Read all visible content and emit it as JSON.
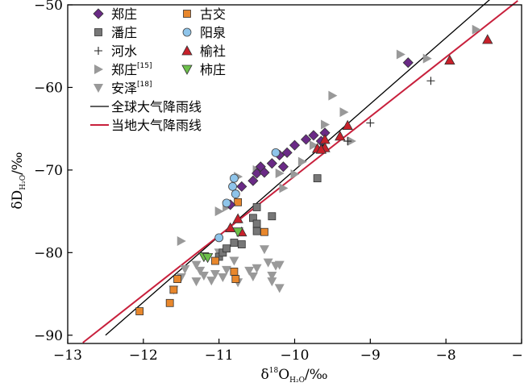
{
  "chart_data": {
    "type": "scatter",
    "title": "",
    "xlabel": {
      "main": "δ",
      "sup": "18",
      "mid": "O",
      "sub": "H₂O",
      "unit": "/‰"
    },
    "ylabel": {
      "main": "δD",
      "sub": "H₂O",
      "unit": "/‰"
    },
    "xlim": [
      -13,
      -7
    ],
    "ylim": [
      -91,
      -50
    ],
    "xticks": [
      -13,
      -12,
      -11,
      -10,
      -9,
      -8,
      -7
    ],
    "yticks": [
      -90,
      -80,
      -70,
      -60,
      -50
    ],
    "xtick_labels": [
      "−13",
      "−12",
      "−11",
      "−10",
      "−9",
      "−8",
      "−7"
    ],
    "ytick_labels": [
      "−90",
      "−80",
      "−70",
      "−60",
      "−50"
    ],
    "grid": false,
    "legend_position": "top-left",
    "series": [
      {
        "name": "郑庄",
        "sup": "",
        "marker": "diamond",
        "color": "#6a2a86",
        "points": [
          [
            -10.85,
            -74.2
          ],
          [
            -10.7,
            -72.0
          ],
          [
            -10.55,
            -71.3
          ],
          [
            -10.5,
            -70.4
          ],
          [
            -10.45,
            -69.6
          ],
          [
            -10.4,
            -70.3
          ],
          [
            -10.3,
            -69.2
          ],
          [
            -10.2,
            -68.2
          ],
          [
            -10.15,
            -69.6
          ],
          [
            -10.1,
            -67.9
          ],
          [
            -10.0,
            -67.0
          ],
          [
            -9.85,
            -66.3
          ],
          [
            -9.75,
            -65.8
          ],
          [
            -9.65,
            -66.5
          ],
          [
            -9.6,
            -65.5
          ],
          [
            -8.5,
            -57.0
          ]
        ]
      },
      {
        "name": "潘庄",
        "sup": "",
        "marker": "square",
        "color": "#777777",
        "points": [
          [
            -11.0,
            -80.5
          ],
          [
            -10.95,
            -80.0
          ],
          [
            -10.9,
            -79.5
          ],
          [
            -10.8,
            -78.8
          ],
          [
            -10.7,
            -79.0
          ],
          [
            -10.55,
            -75.8
          ],
          [
            -10.5,
            -74.5
          ],
          [
            -10.5,
            -76.5
          ],
          [
            -10.5,
            -77.4
          ],
          [
            -10.3,
            -75.6
          ],
          [
            -9.7,
            -71.0
          ]
        ]
      },
      {
        "name": "河水",
        "sup": "",
        "marker": "plus",
        "color": "#222222",
        "points": [
          [
            -9.3,
            -66.5
          ],
          [
            -9.0,
            -64.3
          ],
          [
            -8.2,
            -59.2
          ]
        ]
      },
      {
        "name": "郑庄",
        "sup": "[15]",
        "marker": "tri-right",
        "color": "#999999",
        "points": [
          [
            -11.5,
            -78.6
          ],
          [
            -11.0,
            -75.0
          ],
          [
            -10.9,
            -74.5
          ],
          [
            -10.75,
            -70.8
          ],
          [
            -10.5,
            -70.0
          ],
          [
            -10.2,
            -70.4
          ],
          [
            -10.15,
            -72.2
          ],
          [
            -10.0,
            -70.5
          ],
          [
            -9.9,
            -69.0
          ],
          [
            -9.75,
            -67.0
          ],
          [
            -9.6,
            -64.5
          ],
          [
            -9.5,
            -61.0
          ],
          [
            -9.35,
            -63.0
          ],
          [
            -9.25,
            -66.5
          ],
          [
            -8.6,
            -56.0
          ],
          [
            -8.25,
            -56.5
          ],
          [
            -7.6,
            -53.0
          ]
        ]
      },
      {
        "name": "安泽",
        "sup": "[18]",
        "marker": "tri-down",
        "color": "#999999",
        "points": [
          [
            -11.6,
            -84.5
          ],
          [
            -11.5,
            -83.0
          ],
          [
            -11.45,
            -82.0
          ],
          [
            -11.3,
            -83.5
          ],
          [
            -11.3,
            -81.5
          ],
          [
            -11.25,
            -82.2
          ],
          [
            -11.2,
            -82.8
          ],
          [
            -11.1,
            -83.4
          ],
          [
            -11.05,
            -82.6
          ],
          [
            -11.0,
            -80.0
          ],
          [
            -10.95,
            -83.0
          ],
          [
            -10.9,
            -82.1
          ],
          [
            -10.8,
            -81.0
          ],
          [
            -10.75,
            -83.6
          ],
          [
            -10.6,
            -82.2
          ],
          [
            -10.55,
            -82.9
          ],
          [
            -10.5,
            -81.9
          ],
          [
            -10.4,
            -79.6
          ],
          [
            -10.35,
            -81.2
          ],
          [
            -10.3,
            -82.8
          ],
          [
            -10.3,
            -83.5
          ],
          [
            -10.25,
            -81.6
          ],
          [
            -10.2,
            -84.3
          ],
          [
            -10.2,
            -81.5
          ]
        ]
      },
      {
        "name": "古交",
        "sup": "",
        "marker": "square",
        "color": "#e8872c",
        "points": [
          [
            -12.05,
            -87.1
          ],
          [
            -11.65,
            -86.1
          ],
          [
            -11.6,
            -84.5
          ],
          [
            -11.55,
            -83.2
          ],
          [
            -11.05,
            -81.0
          ],
          [
            -10.8,
            -82.3
          ],
          [
            -10.78,
            -83.2
          ],
          [
            -10.75,
            -73.9
          ],
          [
            -10.4,
            -77.5
          ]
        ]
      },
      {
        "name": "阳泉",
        "sup": "",
        "marker": "circle",
        "color": "#8ec4ea",
        "points": [
          [
            -11.0,
            -78.2
          ],
          [
            -10.8,
            -71.0
          ],
          [
            -10.82,
            -72.0
          ],
          [
            -10.78,
            -72.9
          ],
          [
            -10.9,
            -74.0
          ],
          [
            -10.25,
            -67.9
          ]
        ]
      },
      {
        "name": "榆社",
        "sup": "",
        "marker": "tri-up",
        "color": "#c8202a",
        "points": [
          [
            -10.85,
            -77.0
          ],
          [
            -10.75,
            -75.9
          ],
          [
            -10.7,
            -77.5
          ],
          [
            -9.7,
            -67.4
          ],
          [
            -9.6,
            -66.3
          ],
          [
            -9.6,
            -67.3
          ],
          [
            -9.65,
            -67.5
          ],
          [
            -9.4,
            -65.9
          ],
          [
            -9.3,
            -64.6
          ],
          [
            -7.95,
            -56.7
          ],
          [
            -7.45,
            -54.2
          ]
        ]
      },
      {
        "name": "柿庄",
        "sup": "",
        "marker": "tri-down",
        "color": "#6cc04a",
        "points": [
          [
            -11.2,
            -80.5
          ],
          [
            -11.15,
            -80.6
          ],
          [
            -10.75,
            -77.5
          ]
        ]
      }
    ],
    "lines": [
      {
        "name": "全球大气降雨线",
        "color": "#000000",
        "points": [
          [
            -12.5,
            -90
          ],
          [
            -7.4,
            -49.2
          ]
        ]
      },
      {
        "name": "当地大气降雨线",
        "color": "#c8203c",
        "points": [
          [
            -12.8,
            -90.9
          ],
          [
            -7.05,
            -49.5
          ]
        ]
      }
    ]
  }
}
